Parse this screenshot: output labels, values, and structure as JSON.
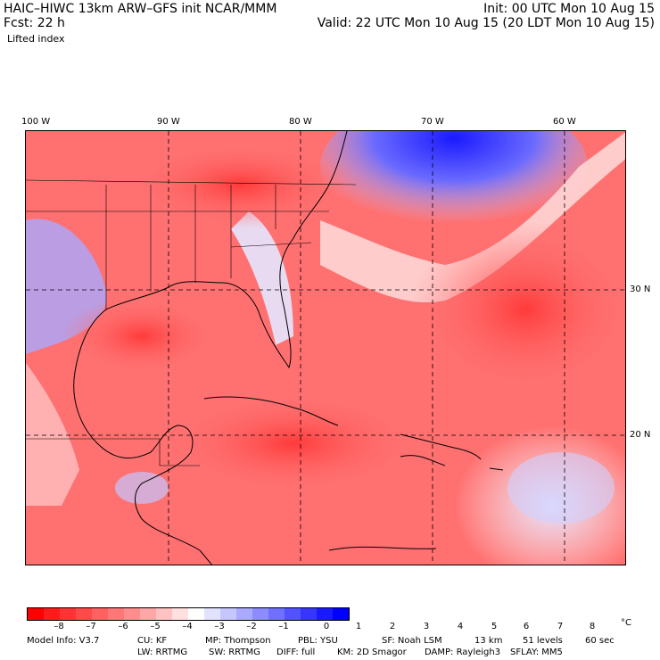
{
  "header": {
    "title": "HAIC–HIWC 13km ARW–GFS init   NCAR/MMM",
    "fcst_label": "Fcst:   22 h",
    "field": "Lifted index",
    "init": "Init: 00 UTC Mon 10 Aug 15",
    "valid": "Valid: 22 UTC Mon 10 Aug 15 (20 LDT Mon 10 Aug 15)"
  },
  "map": {
    "longitude_labels": [
      "100 W",
      "90 W",
      "80 W",
      "70 W",
      "60 W"
    ],
    "latitude_labels": [
      "30 N",
      "20 N"
    ]
  },
  "colorbar": {
    "unit": "°C",
    "labels": [
      "–8",
      "–7",
      "–6",
      "–5",
      "–4",
      "–3",
      "–2",
      "–1",
      "0",
      "1",
      "2",
      "3",
      "4",
      "5",
      "6",
      "7",
      "8"
    ],
    "colors": [
      "#ff0000",
      "#ff1b1b",
      "#ff3333",
      "#ff4a4a",
      "#ff6060",
      "#ff7777",
      "#ff8d8d",
      "#ffa6a6",
      "#ffc2c2",
      "#ffe0e0",
      "#ffffff",
      "#e2e2ff",
      "#c6c6ff",
      "#a9a9ff",
      "#8c8cff",
      "#7070ff",
      "#5252ff",
      "#3636ff",
      "#1a1aff",
      "#0000ff"
    ]
  },
  "model_info": {
    "line1": [
      "Model Info: V3.7",
      "CU: KF",
      "MP: Thompson",
      "PBL: YSU",
      "SF: Noah LSM",
      "13 km",
      "51 levels",
      "60 sec"
    ],
    "line2": [
      "LW: RRTMG",
      "SW: RRTMG",
      "DIFF: full",
      "KM: 2D Smagor",
      "DAMP: Rayleigh3",
      "SFLAY: MM5"
    ]
  }
}
